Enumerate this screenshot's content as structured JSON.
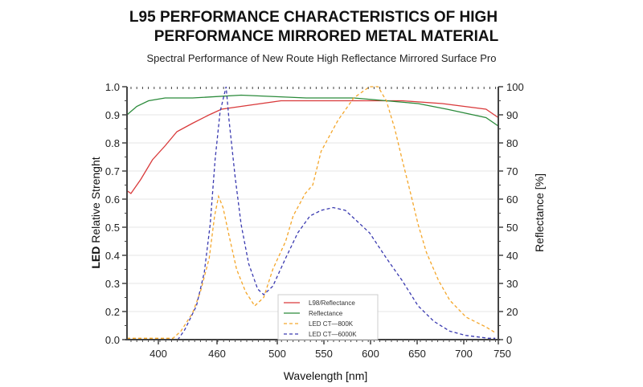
{
  "title_line1": "L95 PERFORMANCE CHARACTERISTICS OF HIGH",
  "title_line2": "PERFORMANCE MIRRORED METAL MATERIAL",
  "subtitle": "Spectral Performance of New Route High Reflectance Mirrored Surface Pro",
  "chart_data": {
    "type": "line",
    "title": "L95 PERFORMANCE CHARACTERISTICS OF HIGH PERFORMANCE MIRRORED METAL MATERIAL",
    "subtitle": "Spectral Performance of New Route High Reflectance Mirrored Surface Pro",
    "xlabel": "Wavelength [nm]",
    "ylabel_bold": "LED",
    "ylabel_rest": " Relative Strenght",
    "y2label": "Reflectance [%]",
    "x_tick_labels": [
      "400",
      "460",
      "500",
      "550",
      "600",
      "650",
      "700",
      "750"
    ],
    "y_tick_labels": [
      "0.0",
      "0.2",
      "0.3",
      "0.4",
      "0.5",
      "0.6",
      "0.7",
      "0.8",
      "0.9",
      "1.0"
    ],
    "y2_tick_labels": [
      "0",
      "20",
      "30",
      "40",
      "50",
      "60",
      "70",
      "80",
      "90",
      "100"
    ],
    "xlim": [
      368,
      745
    ],
    "ylim": [
      0,
      1.0
    ],
    "y2lim": [
      0,
      100
    ],
    "grid": true,
    "legend_position": "bottom-center",
    "series": [
      {
        "name": "L98/Reflectance",
        "color": "#d9393a",
        "dash": false,
        "x": [
          368,
          372,
          382,
          394,
          407,
          419,
          435,
          452,
          463,
          476,
          504,
          547,
          590,
          634,
          677,
          729,
          745
        ],
        "y": [
          0.63,
          0.62,
          0.67,
          0.74,
          0.79,
          0.84,
          0.87,
          0.9,
          0.92,
          0.93,
          0.95,
          0.95,
          0.95,
          0.95,
          0.94,
          0.92,
          0.89
        ]
      },
      {
        "name": "Reflectance",
        "color": "#2a8a3a",
        "dash": false,
        "x": [
          368,
          378,
          390,
          407,
          435,
          476,
          531,
          582,
          617,
          651,
          682,
          729,
          745
        ],
        "y": [
          0.9,
          0.93,
          0.95,
          0.96,
          0.96,
          0.97,
          0.96,
          0.96,
          0.95,
          0.94,
          0.92,
          0.89,
          0.86
        ]
      },
      {
        "name": "LED   CT—800K",
        "color": "#f4a62a",
        "dash": true,
        "x": [
          368,
          415,
          423,
          435,
          443,
          452,
          457.5,
          461,
          464,
          468,
          473,
          479,
          485,
          491,
          497,
          509,
          517,
          530,
          538,
          547,
          565,
          582,
          599,
          608,
          617,
          626,
          634,
          643,
          651,
          660,
          673,
          685,
          703,
          729,
          741
        ],
        "y": [
          0.01,
          0.01,
          0.06,
          0.19,
          0.27,
          0.39,
          0.54,
          0.61,
          0.57,
          0.47,
          0.35,
          0.27,
          0.22,
          0.25,
          0.35,
          0.45,
          0.54,
          0.62,
          0.65,
          0.77,
          0.88,
          0.96,
          1.0,
          1.0,
          0.95,
          0.85,
          0.74,
          0.62,
          0.51,
          0.41,
          0.31,
          0.24,
          0.16,
          0.09,
          0.05
        ]
      },
      {
        "name": "LED   CT—6000K",
        "color": "#3a3ab0",
        "dash": true,
        "x": [
          368,
          420,
          427,
          439,
          447,
          453,
          458,
          462,
          466,
          468,
          472,
          476,
          481,
          487,
          491,
          497,
          509,
          522,
          535,
          547,
          560,
          573,
          586,
          599,
          617,
          634,
          651,
          668,
          685,
          703,
          732,
          741
        ],
        "y": [
          0.0,
          0.0,
          0.07,
          0.22,
          0.34,
          0.51,
          0.74,
          0.91,
          1.0,
          0.88,
          0.68,
          0.51,
          0.37,
          0.28,
          0.26,
          0.29,
          0.39,
          0.48,
          0.54,
          0.56,
          0.57,
          0.56,
          0.52,
          0.48,
          0.39,
          0.31,
          0.22,
          0.13,
          0.06,
          0.03,
          0.01,
          0.01
        ]
      }
    ]
  }
}
